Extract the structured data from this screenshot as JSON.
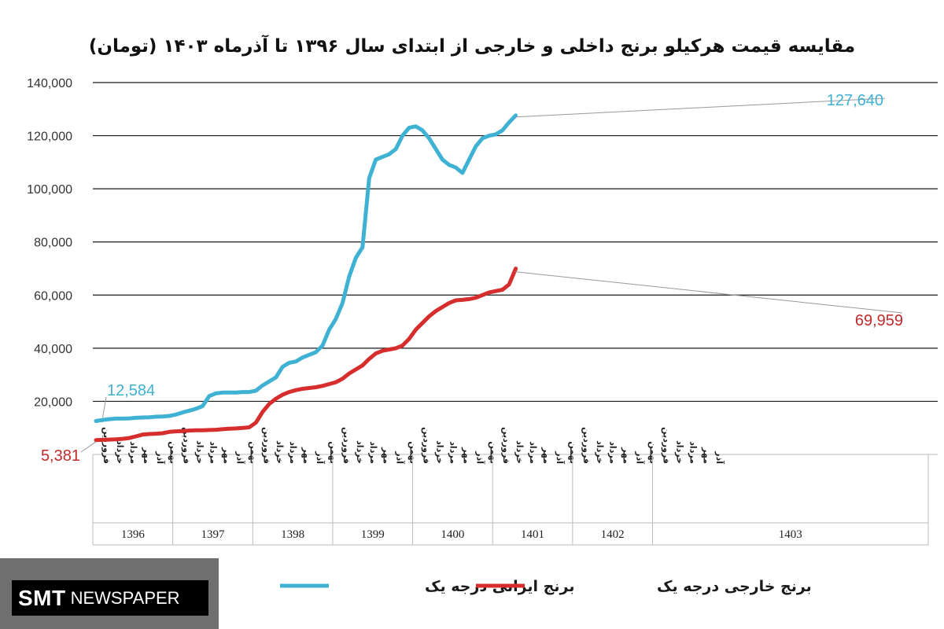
{
  "chart_data": {
    "type": "line",
    "title": "مقایسه قیمت هرکیلو برنج داخلی و خارجی از ابتدای سال ۱۳۹۶ تا آذرماه ۱۴۰۳ (تومان)",
    "ylim": [
      0,
      140000
    ],
    "y_ticks": [
      "20,000",
      "40,000",
      "60,000",
      "80,000",
      "100,000",
      "120,000",
      "140,000"
    ],
    "grid": true,
    "legend_position": "bottom",
    "years": [
      "1396",
      "1397",
      "1398",
      "1399",
      "1400",
      "1401",
      "1402",
      "1403"
    ],
    "month_labels": [
      "فروردین",
      "خرداد",
      "مرداد",
      "مهر",
      "آذر",
      "بهمن"
    ],
    "last_month_label": "آذر",
    "series": [
      {
        "name": "برنج ایرانی درجه یک",
        "color": "#3fb1d3",
        "start_label": "12,584",
        "end_label": "127,640",
        "values": [
          12584,
          13000,
          13300,
          13500,
          13500,
          13600,
          13800,
          13900,
          14000,
          14200,
          14300,
          14500,
          15000,
          15800,
          16500,
          17200,
          18200,
          22000,
          23000,
          23300,
          23300,
          23300,
          23500,
          23500,
          24000,
          26000,
          27500,
          29000,
          33000,
          34500,
          35000,
          36500,
          37500,
          38500,
          41000,
          47000,
          51000,
          57000,
          67000,
          74000,
          78000,
          104000,
          111000,
          112000,
          113000,
          115000,
          120000,
          123000,
          123500,
          122000,
          119000,
          115000,
          111000,
          109000,
          108000,
          106000,
          111000,
          116000,
          119000,
          120000,
          120500,
          122000,
          125000,
          127640
        ]
      },
      {
        "name": "برنج خارجی درجه یک",
        "color": "#d62d2d",
        "start_label": "5,381",
        "end_label": "69,959",
        "values": [
          5381,
          5500,
          5600,
          5700,
          5900,
          6200,
          6800,
          7500,
          7700,
          7800,
          8000,
          8500,
          8700,
          8800,
          9000,
          9100,
          9100,
          9200,
          9300,
          9500,
          9700,
          9800,
          10000,
          10200,
          12000,
          16000,
          19000,
          21000,
          22500,
          23500,
          24200,
          24700,
          25000,
          25300,
          25800,
          26500,
          27200,
          28500,
          30500,
          32000,
          33500,
          36000,
          38000,
          39000,
          39500,
          40000,
          41000,
          43500,
          47000,
          49500,
          52000,
          54000,
          55500,
          57000,
          58000,
          58200,
          58500,
          59000,
          60000,
          61000,
          61500,
          62000,
          64000,
          69959
        ]
      }
    ]
  },
  "watermark": {
    "bold": "SMT",
    "thin": "NEWSPAPER"
  }
}
